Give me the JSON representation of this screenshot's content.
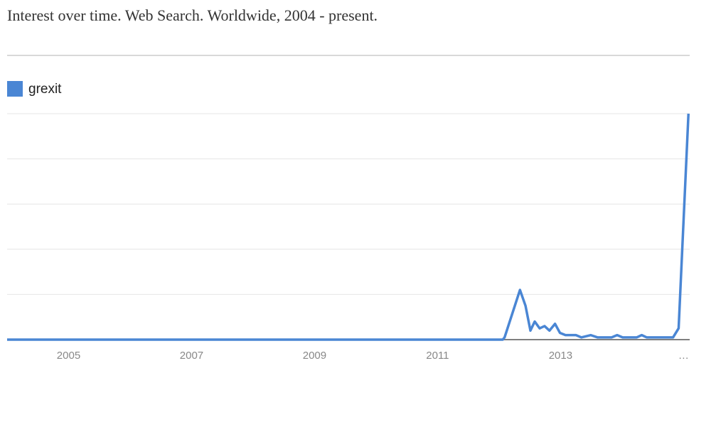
{
  "chart_data": {
    "type": "line",
    "title": "Interest over time. Web Search. Worldwide, 2004 - present.",
    "x": [
      2004.0,
      2012.06,
      2012.09,
      2012.34,
      2012.43,
      2012.51,
      2012.58,
      2012.66,
      2012.74,
      2012.82,
      2012.91,
      2012.99,
      2013.08,
      2013.25,
      2013.34,
      2013.49,
      2013.6,
      2013.83,
      2013.92,
      2014.01,
      2014.24,
      2014.32,
      2014.4,
      2014.83,
      2014.92,
      2015.08
    ],
    "series": [
      {
        "name": "grexit",
        "color": "#4a86d4",
        "values": [
          0,
          0,
          1,
          22,
          15,
          4,
          8,
          5,
          6,
          4,
          7,
          3,
          2,
          2,
          1,
          2,
          1,
          1,
          2,
          1,
          1,
          2,
          1,
          1,
          5,
          100
        ]
      }
    ],
    "xlim": [
      2004.0,
      2015.1
    ],
    "xticks": [
      2005,
      2007,
      2009,
      2011,
      2013,
      {
        "value": 2015,
        "label": "…"
      }
    ],
    "ylim": [
      0,
      100
    ],
    "yticks": [
      0,
      20,
      40,
      60,
      80,
      100
    ],
    "grid": true,
    "legend": "top-left"
  }
}
